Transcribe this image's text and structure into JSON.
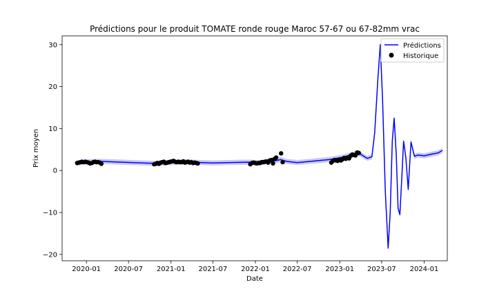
{
  "chart_data": {
    "type": "line",
    "title": "Prédictions pour le produit TOMATE ronde rouge Maroc 57-67 ou 67-82mm vrac",
    "xlabel": "Date",
    "ylabel": "Prix moyen",
    "xlim": [
      "2019-09-18",
      "2024-04-10"
    ],
    "ylim": [
      -21.5,
      32.1
    ],
    "x_ticks": [
      "2020-01",
      "2020-07",
      "2021-01",
      "2021-07",
      "2022-01",
      "2022-07",
      "2023-01",
      "2023-07",
      "2024-01"
    ],
    "y_ticks": [
      -20,
      -10,
      0,
      10,
      20,
      30
    ],
    "grid": false,
    "legend": {
      "placement": "top-right",
      "entries": [
        "Prédictions",
        "Historique"
      ]
    },
    "colors": {
      "prediction_line": "#0000ff",
      "confidence_band": "#c8c8f4",
      "history_points": "#000000"
    },
    "series": [
      {
        "name": "Prédictions",
        "kind": "line",
        "x": [
          "2019-11-22",
          "2020-01-01",
          "2020-03-01",
          "2020-06-01",
          "2020-09-01",
          "2020-11-01",
          "2021-01-01",
          "2021-03-01",
          "2021-05-15",
          "2021-07-01",
          "2021-09-01",
          "2021-12-01",
          "2022-01-15",
          "2022-03-15",
          "2022-04-20",
          "2022-05-15",
          "2022-07-01",
          "2022-11-15",
          "2022-12-15",
          "2023-01-15",
          "2023-02-15",
          "2023-03-15",
          "2023-04-01",
          "2023-04-20",
          "2023-05-01",
          "2023-05-20",
          "2023-06-01",
          "2023-06-15",
          "2023-06-25",
          "2023-07-05",
          "2023-07-17",
          "2023-07-29",
          "2023-08-07",
          "2023-08-16",
          "2023-08-24",
          "2023-09-02",
          "2023-09-10",
          "2023-09-18",
          "2023-09-26",
          "2023-10-04",
          "2023-10-14",
          "2023-10-24",
          "2023-11-05",
          "2023-11-20",
          "2023-12-05",
          "2024-01-01",
          "2024-02-01",
          "2024-03-01",
          "2024-03-20"
        ],
        "y": [
          1.8,
          2.1,
          2.2,
          2.0,
          1.8,
          1.7,
          1.9,
          2.1,
          1.9,
          1.8,
          1.9,
          2.0,
          1.9,
          2.2,
          2.6,
          2.2,
          1.9,
          2.6,
          2.9,
          3.2,
          3.7,
          4.1,
          3.9,
          3.2,
          2.9,
          3.3,
          9.0,
          22.0,
          30.0,
          17.0,
          -5.0,
          -18.5,
          -10.0,
          7.0,
          12.5,
          4.0,
          -9.0,
          -10.5,
          -2.0,
          7.0,
          3.0,
          -4.5,
          6.8,
          3.4,
          3.7,
          3.5,
          3.9,
          4.2,
          4.8
        ]
      },
      {
        "name": "Historique",
        "kind": "scatter",
        "x": [
          "2019-11-22",
          "2019-11-29",
          "2019-12-06",
          "2019-12-13",
          "2019-12-20",
          "2019-12-27",
          "2020-01-03",
          "2020-01-10",
          "2020-01-17",
          "2020-01-24",
          "2020-01-31",
          "2020-02-07",
          "2020-02-14",
          "2020-02-21",
          "2020-02-28",
          "2020-03-06",
          "2020-10-20",
          "2020-10-27",
          "2020-11-03",
          "2020-11-10",
          "2020-11-17",
          "2020-11-24",
          "2020-12-01",
          "2020-12-08",
          "2020-12-15",
          "2020-12-22",
          "2020-12-29",
          "2021-01-05",
          "2021-01-12",
          "2021-01-19",
          "2021-01-26",
          "2021-02-02",
          "2021-02-09",
          "2021-02-16",
          "2021-02-23",
          "2021-03-02",
          "2021-03-09",
          "2021-03-16",
          "2021-03-23",
          "2021-03-30",
          "2021-04-06",
          "2021-04-13",
          "2021-04-20",
          "2021-04-27",
          "2021-12-10",
          "2021-12-17",
          "2021-12-24",
          "2021-12-31",
          "2022-01-07",
          "2022-01-14",
          "2022-01-21",
          "2022-01-28",
          "2022-02-04",
          "2022-02-11",
          "2022-02-18",
          "2022-02-25",
          "2022-03-04",
          "2022-03-11",
          "2022-03-18",
          "2022-03-25",
          "2022-04-01",
          "2022-04-22",
          "2022-04-29",
          "2022-11-25",
          "2022-12-02",
          "2022-12-09",
          "2022-12-16",
          "2022-12-23",
          "2022-12-30",
          "2023-01-06",
          "2023-01-13",
          "2023-01-20",
          "2023-01-27",
          "2023-02-03",
          "2023-02-10",
          "2023-02-17",
          "2023-02-24",
          "2023-03-03",
          "2023-03-10",
          "2023-03-17",
          "2023-03-24"
        ],
        "y": [
          1.8,
          1.9,
          2.0,
          2.1,
          2.0,
          2.1,
          2.0,
          1.9,
          1.7,
          1.8,
          2.0,
          2.1,
          2.0,
          2.0,
          1.9,
          1.6,
          1.5,
          1.6,
          1.8,
          1.6,
          1.9,
          2.0,
          2.1,
          1.8,
          1.9,
          2.0,
          2.1,
          2.2,
          2.3,
          2.1,
          2.0,
          2.1,
          2.0,
          2.0,
          2.2,
          1.9,
          2.0,
          2.1,
          1.9,
          2.0,
          1.8,
          1.9,
          1.8,
          1.7,
          1.5,
          1.8,
          1.9,
          1.8,
          1.7,
          1.8,
          1.8,
          2.0,
          2.0,
          2.1,
          2.2,
          1.9,
          2.4,
          2.5,
          1.7,
          2.8,
          3.1,
          4.1,
          2.0,
          1.9,
          2.3,
          2.5,
          2.4,
          2.3,
          2.6,
          2.4,
          2.7,
          3.0,
          2.8,
          3.1,
          2.9,
          3.5,
          3.8,
          3.7,
          3.6,
          4.3,
          4.2
        ]
      }
    ]
  }
}
